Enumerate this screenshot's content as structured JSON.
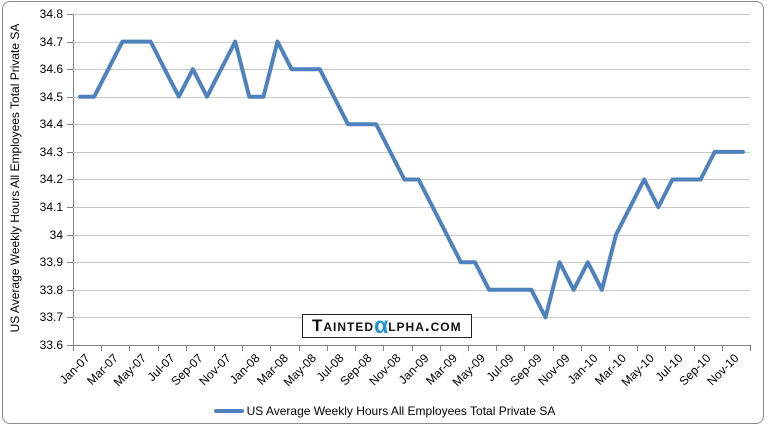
{
  "watermark": {
    "prefix": "Tainted",
    "alpha_char": "α",
    "suffix": "lpha.com",
    "alpha_color": "#1d93d1"
  },
  "chart_data": {
    "type": "line",
    "title": "",
    "xlabel": "",
    "ylabel": "US Average Weekly Hours All Employees Total Private SA",
    "legend_label": "US Average Weekly Hours All Employees Total Private SA",
    "legend_position": "bottom",
    "grid": true,
    "line_color": "#4F81BD",
    "ylim": [
      33.6,
      34.8
    ],
    "ytick_step": 0.1,
    "x_label_interval": 2,
    "x": [
      "Jan-07",
      "Feb-07",
      "Mar-07",
      "Apr-07",
      "May-07",
      "Jun-07",
      "Jul-07",
      "Aug-07",
      "Sep-07",
      "Oct-07",
      "Nov-07",
      "Dec-07",
      "Jan-08",
      "Feb-08",
      "Mar-08",
      "Apr-08",
      "May-08",
      "Jun-08",
      "Jul-08",
      "Aug-08",
      "Sep-08",
      "Oct-08",
      "Nov-08",
      "Dec-08",
      "Jan-09",
      "Feb-09",
      "Mar-09",
      "Apr-09",
      "May-09",
      "Jun-09",
      "Jul-09",
      "Aug-09",
      "Sep-09",
      "Oct-09",
      "Nov-09",
      "Dec-09",
      "Jan-10",
      "Feb-10",
      "Mar-10",
      "Apr-10",
      "May-10",
      "Jun-10",
      "Jul-10",
      "Aug-10",
      "Sep-10",
      "Oct-10",
      "Nov-10",
      "Dec-10"
    ],
    "values": [
      34.5,
      34.5,
      34.6,
      34.7,
      34.7,
      34.7,
      34.6,
      34.5,
      34.6,
      34.5,
      34.6,
      34.7,
      34.5,
      34.5,
      34.7,
      34.6,
      34.6,
      34.6,
      34.5,
      34.4,
      34.4,
      34.4,
      34.3,
      34.2,
      34.2,
      34.1,
      34.0,
      33.9,
      33.9,
      33.8,
      33.8,
      33.8,
      33.8,
      33.7,
      33.9,
      33.8,
      33.9,
      33.8,
      34.0,
      34.1,
      34.2,
      34.1,
      34.2,
      34.2,
      34.2,
      34.3,
      34.3,
      34.3
    ]
  }
}
